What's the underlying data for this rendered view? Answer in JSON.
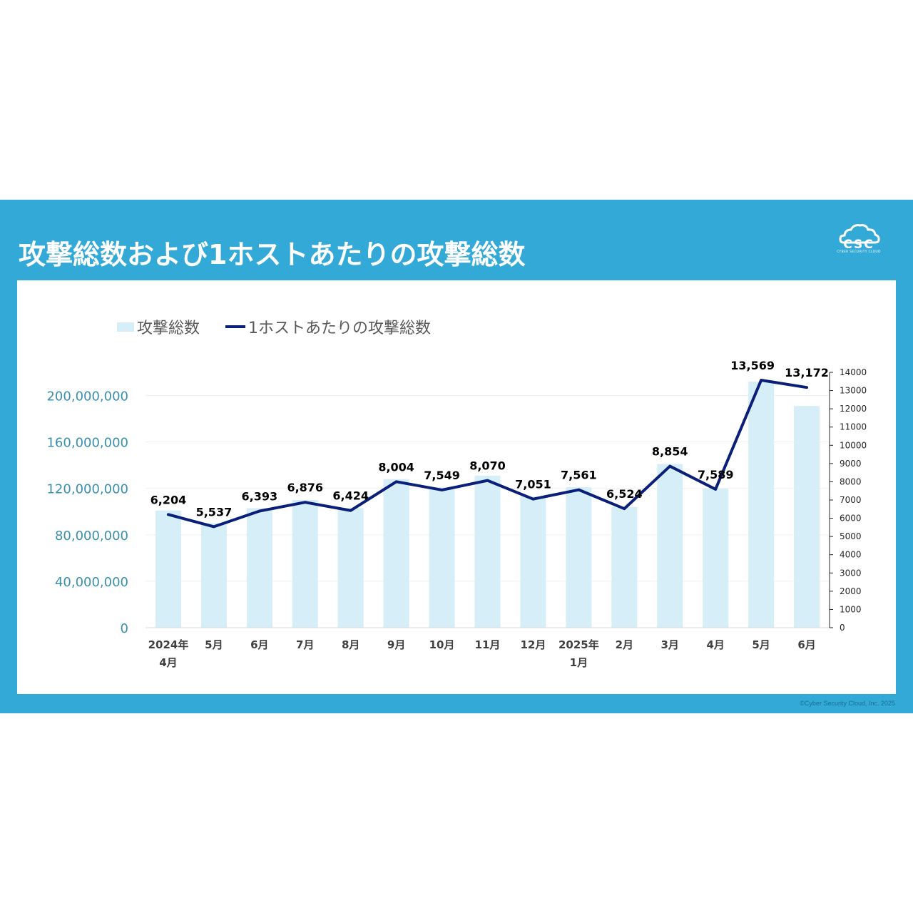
{
  "title": "攻撃総数および1ホストあたりの攻撃総数",
  "logo": {
    "text": "CSC",
    "subtext": "CYBER SECURITY CLOUD"
  },
  "copyright": "©Cyber Security Cloud, Inc. 2025",
  "colors": {
    "background": "#32a9d6",
    "bar": "#d6eef8",
    "line": "#0a1f7a",
    "left_axis_text": "#3a8fae"
  },
  "chart_data": {
    "type": "bar",
    "categories": [
      [
        "2024年",
        "4月"
      ],
      [
        "5月"
      ],
      [
        "6月"
      ],
      [
        "7月"
      ],
      [
        "8月"
      ],
      [
        "9月"
      ],
      [
        "10月"
      ],
      [
        "11月"
      ],
      [
        "12月"
      ],
      [
        "2025年",
        "1月"
      ],
      [
        "2月"
      ],
      [
        "3月"
      ],
      [
        "4月"
      ],
      [
        "5月"
      ],
      [
        "6月"
      ]
    ],
    "series": [
      {
        "name": "攻撃総数",
        "type": "bar",
        "axis": "left",
        "values": [
          101000000,
          90000000,
          103000000,
          110000000,
          103000000,
          128000000,
          121000000,
          131000000,
          113000000,
          121000000,
          104000000,
          141000000,
          120000000,
          212000000,
          191000000
        ]
      },
      {
        "name": "1ホストあたりの攻撃総数",
        "type": "line",
        "axis": "right",
        "values": [
          6204,
          5537,
          6393,
          6876,
          6424,
          8004,
          7549,
          8070,
          7051,
          7561,
          6524,
          8854,
          7589,
          13569,
          13172
        ],
        "labels": [
          "6,204",
          "5,537",
          "6,393",
          "6,876",
          "6,424",
          "8,004",
          "7,549",
          "8,070",
          "7,051",
          "7,561",
          "6,524",
          "8,854",
          "7,589",
          "13,569",
          "13,172"
        ]
      }
    ],
    "y_left": {
      "min": 0,
      "max": 220000000,
      "ticks": [
        0,
        40000000,
        80000000,
        120000000,
        160000000,
        200000000
      ],
      "tick_labels": [
        "0",
        "40,000,000",
        "80,000,000",
        "120,000,000",
        "160,000,000",
        "200,000,000"
      ]
    },
    "y_right": {
      "min": 0,
      "max": 14000,
      "ticks": [
        0,
        1000,
        2000,
        3000,
        4000,
        5000,
        6000,
        7000,
        8000,
        9000,
        10000,
        11000,
        12000,
        13000,
        14000
      ],
      "tick_labels": [
        "0",
        "1000",
        "2000",
        "3000",
        "4000",
        "5000",
        "6000",
        "7000",
        "8000",
        "9000",
        "10000",
        "11000",
        "12000",
        "13000",
        "14000"
      ]
    },
    "legend": {
      "position": "top-left",
      "entries": [
        "攻撃総数",
        "1ホストあたりの攻撃総数"
      ]
    },
    "grid": true
  }
}
